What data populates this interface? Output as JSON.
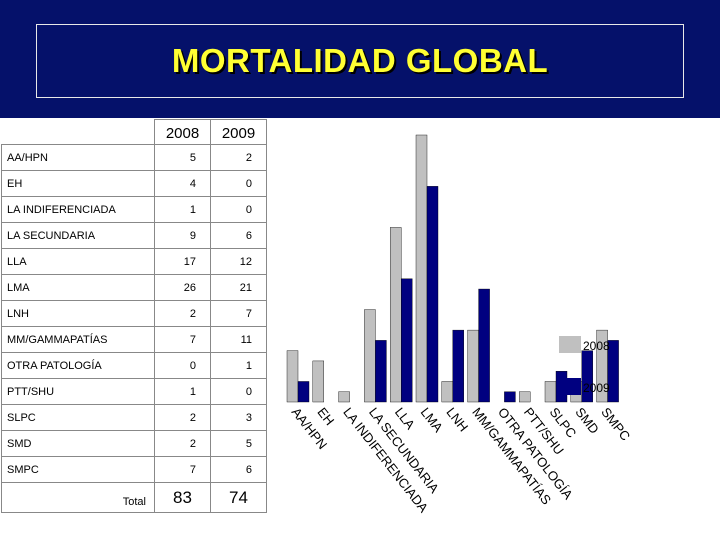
{
  "slide": {
    "title": "MORTALIDAD GLOBAL"
  },
  "table": {
    "headers": [
      "2008",
      "2009"
    ],
    "rows": [
      {
        "label": "AA/HPN",
        "v2008": "5",
        "v2009": "2"
      },
      {
        "label": "EH",
        "v2008": "4",
        "v2009": "0"
      },
      {
        "label": "LA INDIFERENCIADA",
        "v2008": "1",
        "v2009": "0"
      },
      {
        "label": "LA SECUNDARIA",
        "v2008": "9",
        "v2009": "6"
      },
      {
        "label": "LLA",
        "v2008": "17",
        "v2009": "12"
      },
      {
        "label": "LMA",
        "v2008": "26",
        "v2009": "21"
      },
      {
        "label": "LNH",
        "v2008": "2",
        "v2009": "7"
      },
      {
        "label": "MM/GAMMAPATÍAS",
        "v2008": "7",
        "v2009": "11"
      },
      {
        "label": "OTRA PATOLOGÍA",
        "v2008": "0",
        "v2009": "1"
      },
      {
        "label": "PTT/SHU",
        "v2008": "1",
        "v2009": "0"
      },
      {
        "label": "SLPC",
        "v2008": "2",
        "v2009": "3"
      },
      {
        "label": "SMD",
        "v2008": "2",
        "v2009": "5"
      },
      {
        "label": "SMPC",
        "v2008": "7",
        "v2009": "6"
      }
    ],
    "total": {
      "label": "Total",
      "v2008": "83",
      "v2009": "74"
    }
  },
  "chart_data": {
    "type": "bar",
    "categories": [
      "AA/HPN",
      "EH",
      "LA INDIFERENCIADA",
      "LA SECUNDARIA",
      "LLA",
      "LMA",
      "LNH",
      "MM/GAMMAPATÍAS",
      "OTRA PATOLOGÍA",
      "PTT/SHU",
      "SLPC",
      "SMD",
      "SMPC"
    ],
    "series": [
      {
        "name": "2008",
        "values": [
          5,
          4,
          1,
          9,
          17,
          26,
          2,
          7,
          0,
          1,
          2,
          2,
          7
        ],
        "color": "#c0c0c0"
      },
      {
        "name": "2009",
        "values": [
          2,
          0,
          0,
          6,
          12,
          21,
          7,
          11,
          1,
          0,
          3,
          5,
          6
        ],
        "color": "#000080"
      }
    ],
    "ylim": [
      0,
      26
    ],
    "grid": false,
    "legend": "right"
  }
}
